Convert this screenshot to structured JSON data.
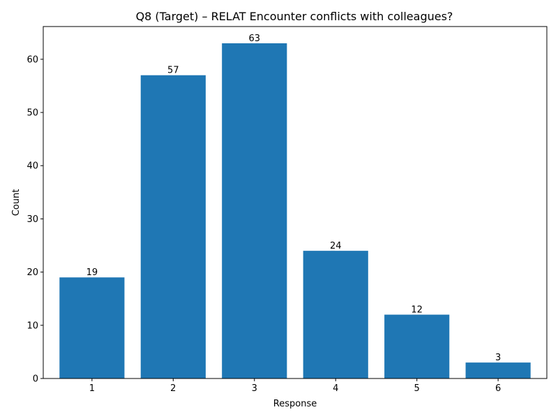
{
  "chart_data": {
    "type": "bar",
    "title": "Q8 (Target) – RELAT Encounter conflicts with colleagues?",
    "xlabel": "Response",
    "ylabel": "Count",
    "categories": [
      "1",
      "2",
      "3",
      "4",
      "5",
      "6"
    ],
    "values": [
      19,
      57,
      63,
      24,
      12,
      3
    ],
    "data_labels": [
      "19",
      "57",
      "63",
      "24",
      "12",
      "3"
    ],
    "y_ticks": [
      "0",
      "10",
      "20",
      "30",
      "40",
      "50",
      "60"
    ],
    "ylim": [
      0,
      66.15
    ],
    "grid": false,
    "legend": "none",
    "bar_color": "#1f77b4"
  }
}
